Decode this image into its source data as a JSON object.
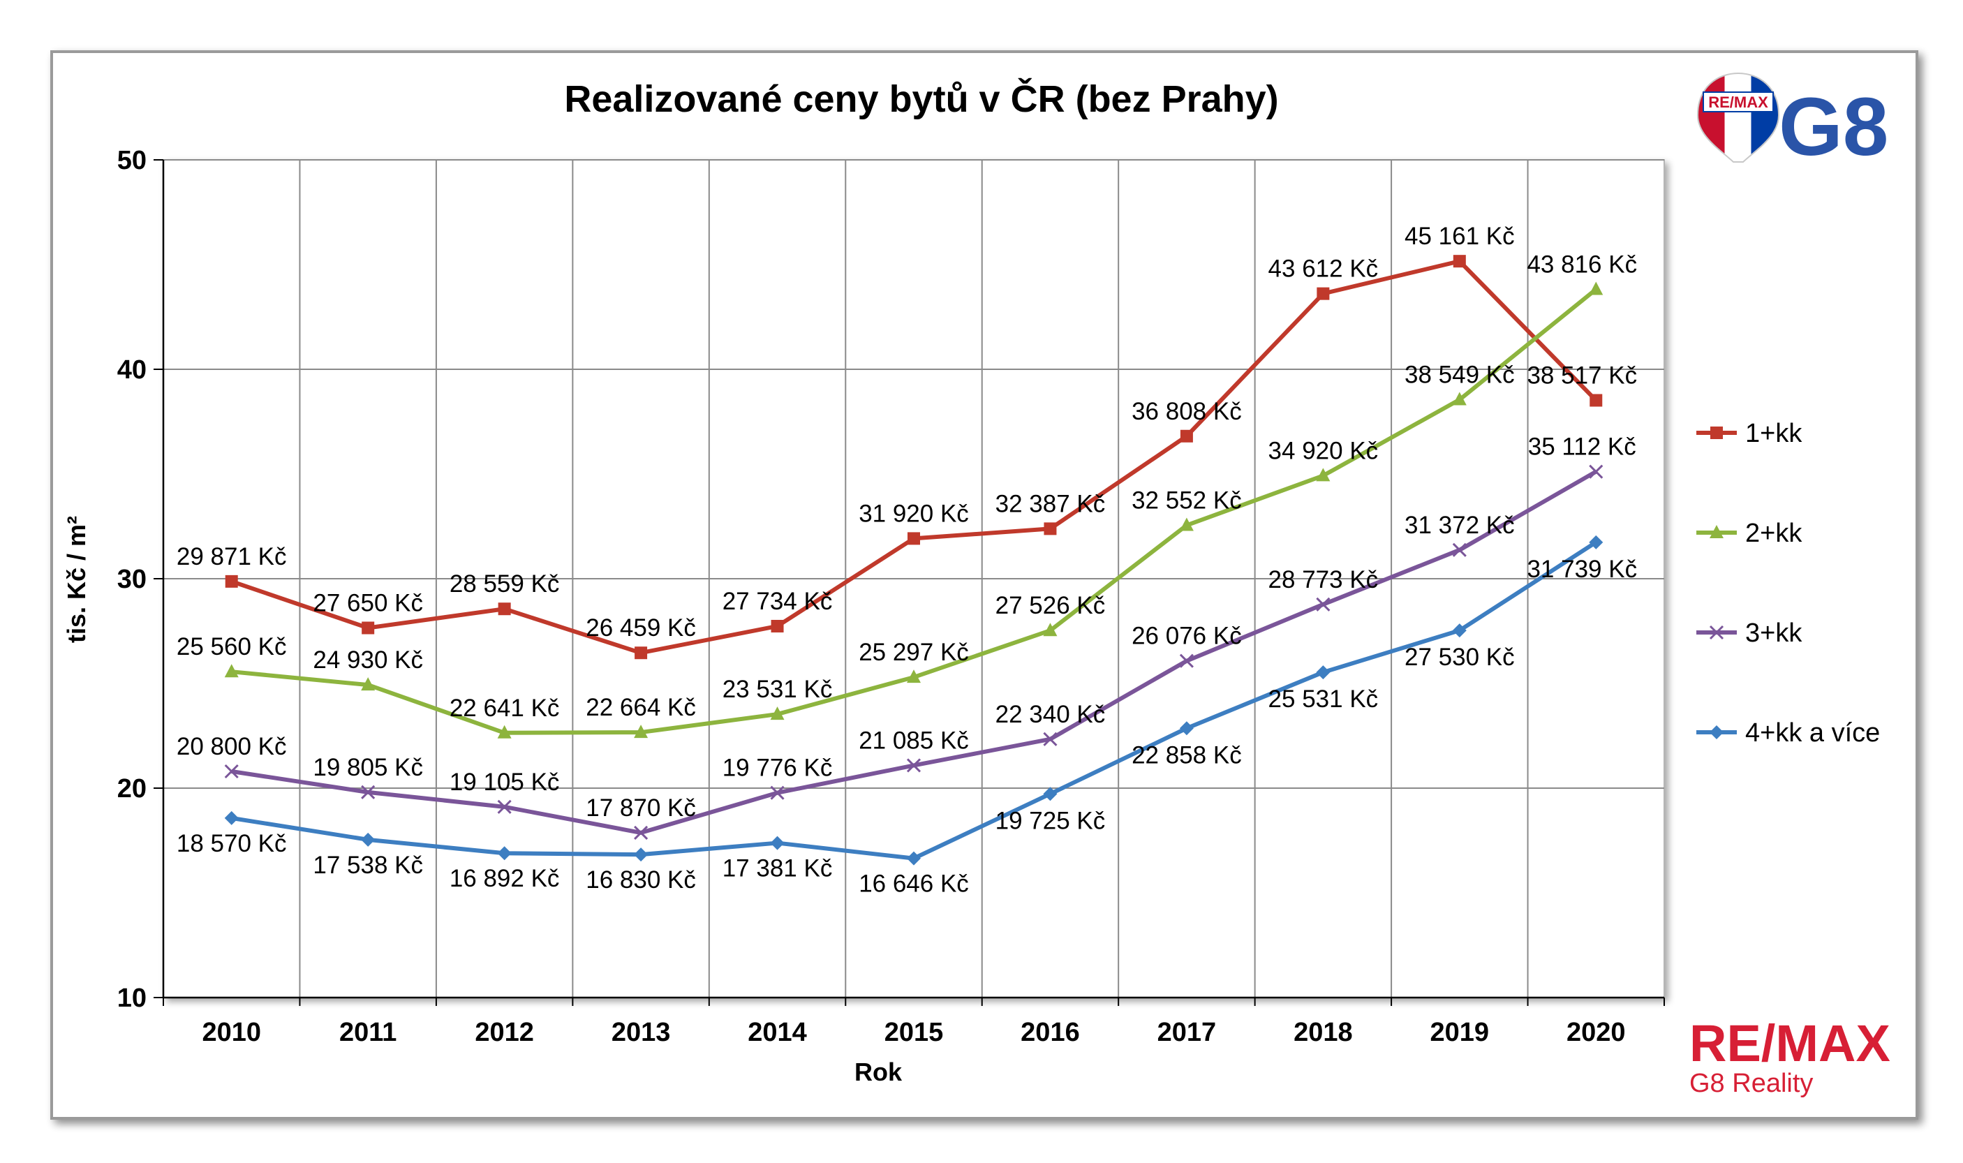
{
  "chart_data": {
    "type": "line",
    "title": "Realizované ceny bytů v ČR (bez Prahy)",
    "xlabel": "Rok",
    "ylabel": "tis. Kč / m²",
    "ylim": [
      10,
      50
    ],
    "yticks": [
      "10",
      "20",
      "30",
      "40",
      "50"
    ],
    "grid": true,
    "legend_position": "right",
    "categories": [
      "2010",
      "2011",
      "2012",
      "2013",
      "2014",
      "2015",
      "2016",
      "2017",
      "2018",
      "2019",
      "2020"
    ],
    "series": [
      {
        "name": "1+kk",
        "color": "#c0392b",
        "marker": "square",
        "values": [
          29.871,
          27.65,
          28.559,
          26.459,
          27.734,
          31.92,
          32.387,
          36.808,
          43.612,
          45.161,
          38.517
        ],
        "labels": [
          "29 871 Kč",
          "27 650 Kč",
          "28 559 Kč",
          "26 459 Kč",
          "27 734 Kč",
          "31 920 Kč",
          "32 387 Kč",
          "36 808 Kč",
          "43 612 Kč",
          "45 161 Kč",
          "38 517 Kč"
        ]
      },
      {
        "name": "2+kk",
        "color": "#8db43e",
        "marker": "triangle",
        "values": [
          25.56,
          24.93,
          22.641,
          22.664,
          23.531,
          25.297,
          27.526,
          32.552,
          34.92,
          38.549,
          43.816
        ],
        "labels": [
          "25 560 Kč",
          "24 930 Kč",
          "22 641 Kč",
          "22 664 Kč",
          "23 531 Kč",
          "25 297 Kč",
          "27 526 Kč",
          "32 552 Kč",
          "34 920 Kč",
          "38 549 Kč",
          "43 816 Kč"
        ]
      },
      {
        "name": "3+kk",
        "color": "#7a5599",
        "marker": "x",
        "values": [
          20.8,
          19.805,
          19.105,
          17.87,
          19.776,
          21.085,
          22.34,
          26.076,
          28.773,
          31.372,
          35.112
        ],
        "labels": [
          "20 800 Kč",
          "19 805 Kč",
          "19 105 Kč",
          "17 870 Kč",
          "19 776 Kč",
          "21 085 Kč",
          "22 340 Kč",
          "26 076 Kč",
          "28 773 Kč",
          "31 372 Kč",
          "35 112 Kč"
        ]
      },
      {
        "name": "4+kk a více",
        "color": "#3d7ec1",
        "marker": "diamond",
        "values": [
          18.57,
          17.538,
          16.892,
          16.83,
          17.381,
          16.646,
          19.725,
          22.858,
          25.531,
          27.53,
          31.739
        ],
        "labels": [
          "18 570 Kč",
          "17 538 Kč",
          "16 892 Kč",
          "16 830 Kč",
          "17 381 Kč",
          "16 646 Kč",
          "19 725 Kč",
          "22 858 Kč",
          "25 531 Kč",
          "27 530 Kč",
          "31 739 Kč"
        ]
      }
    ]
  },
  "logos": {
    "top_right_text": "G8",
    "balloon_text": "RE/MAX",
    "bottom_right_brand": "RE/MAX",
    "bottom_right_subtitle": "G8 Reality"
  }
}
